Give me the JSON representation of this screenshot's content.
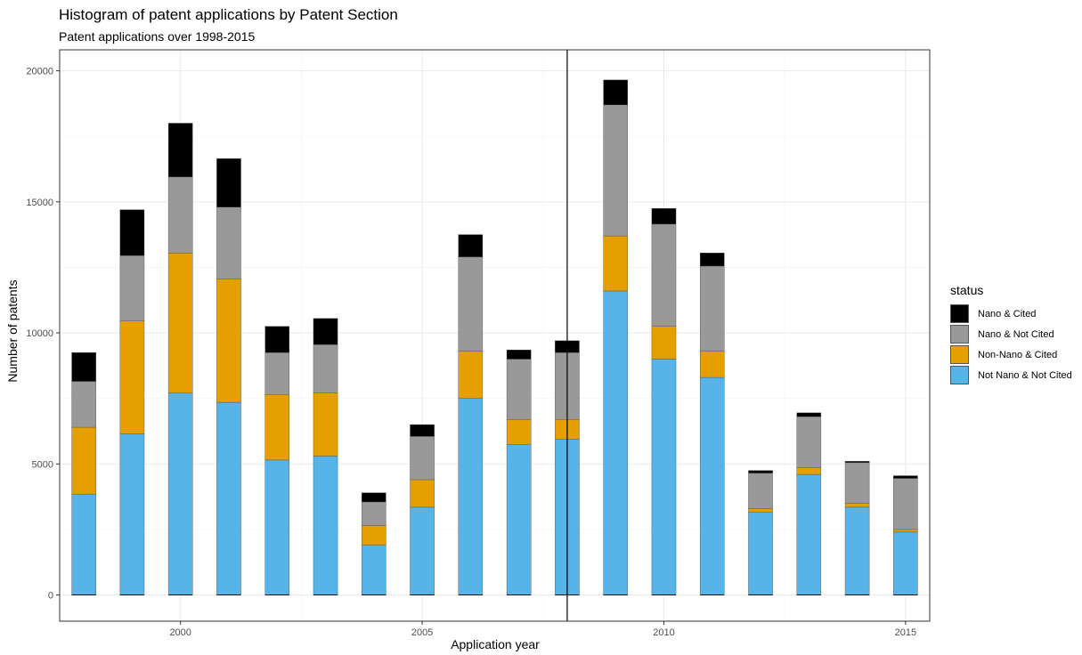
{
  "chart_data": {
    "type": "bar",
    "stacked": true,
    "title": "Histogram of patent applications by Patent Section",
    "subtitle": "Patent applications over 1998-2015",
    "xlabel": "Application year",
    "ylabel": "Number of patents",
    "x": [
      1998,
      1999,
      2000,
      2001,
      2002,
      2003,
      2004,
      2005,
      2006,
      2007,
      2008,
      2009,
      2010,
      2011,
      2012,
      2013,
      2014,
      2015
    ],
    "xlim": [
      1997.5,
      2015.5
    ],
    "ylim": [
      -1000,
      20800
    ],
    "x_ticks": [
      2000,
      2005,
      2010,
      2015
    ],
    "y_ticks": [
      0,
      5000,
      10000,
      15000,
      20000
    ],
    "grid": true,
    "vline_x": 2008,
    "legend_title": "status",
    "legend_position": "right",
    "series": [
      {
        "name": "Not Nano & Not Cited",
        "color": "#56B4E9",
        "values": [
          3850,
          6150,
          7700,
          7350,
          5150,
          5300,
          1900,
          3350,
          7500,
          5750,
          5950,
          11600,
          9000,
          8300,
          3150,
          4600,
          3350,
          2400
        ]
      },
      {
        "name": "Non-Nano & Cited",
        "color": "#E69F00",
        "values": [
          2550,
          4300,
          5350,
          4700,
          2500,
          2400,
          750,
          1050,
          1800,
          950,
          750,
          2100,
          1250,
          1000,
          150,
          250,
          150,
          100
        ]
      },
      {
        "name": "Nano & Not Cited",
        "color": "#999999",
        "values": [
          1750,
          2500,
          2900,
          2750,
          1600,
          1850,
          900,
          1650,
          3600,
          2300,
          2550,
          5000,
          3900,
          3250,
          1350,
          1950,
          1550,
          1950
        ]
      },
      {
        "name": "Nano & Cited",
        "color": "#000000",
        "values": [
          1100,
          1750,
          2050,
          1850,
          1000,
          1000,
          350,
          450,
          850,
          350,
          450,
          950,
          600,
          500,
          100,
          150,
          50,
          100
        ]
      }
    ],
    "legend_order": [
      "Nano & Cited",
      "Nano & Not Cited",
      "Non-Nano & Cited",
      "Not Nano & Not Cited"
    ]
  }
}
